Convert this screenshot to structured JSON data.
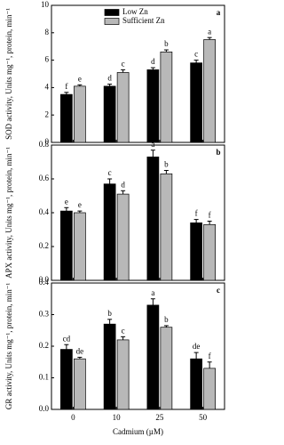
{
  "chart_data": [
    {
      "type": "bar",
      "panel_label": "a",
      "ylabel": "SOD activity, Units mg⁻¹, protein, min⁻¹",
      "ylim": [
        0,
        10
      ],
      "yticks": [
        0,
        2,
        4,
        6,
        8,
        10
      ],
      "legend": "upper left",
      "series": [
        {
          "name": "Low Zn",
          "color": "#000000",
          "values": [
            3.5,
            4.1,
            5.3,
            5.8
          ],
          "errors": [
            0.15,
            0.15,
            0.15,
            0.2
          ],
          "letters": [
            "f",
            "d",
            "d",
            "c"
          ]
        },
        {
          "name": "Sufficient Zn",
          "color": "#b8b8b8",
          "values": [
            4.1,
            5.1,
            6.6,
            7.5
          ],
          "errors": [
            0.1,
            0.2,
            0.15,
            0.15
          ],
          "letters": [
            "e",
            "c",
            "b",
            "a"
          ]
        }
      ]
    },
    {
      "type": "bar",
      "panel_label": "b",
      "ylabel": "APX activity, Units mg⁻¹, protein, min⁻¹",
      "ylim": [
        0,
        0.8
      ],
      "yticks": [
        {
          "value": 0,
          "label": "0.0"
        },
        0.2,
        0.4,
        0.6,
        0.8
      ],
      "series": [
        {
          "color": "#000000",
          "values": [
            0.41,
            0.57,
            0.73,
            0.34
          ],
          "errors": [
            0.02,
            0.03,
            0.04,
            0.02
          ],
          "letters": [
            "e",
            "c",
            "a",
            "f"
          ]
        },
        {
          "color": "#b8b8b8",
          "values": [
            0.4,
            0.51,
            0.63,
            0.33
          ],
          "errors": [
            0.01,
            0.02,
            0.02,
            0.02
          ],
          "letters": [
            "e",
            "d",
            "b",
            "f"
          ]
        }
      ]
    },
    {
      "type": "bar",
      "panel_label": "c",
      "ylabel": "GR activity, Units mg⁻¹, protein, min⁻¹",
      "xlabel": "Cadmium (µM)",
      "categories": [
        "0",
        "10",
        "25",
        "50"
      ],
      "ylim": [
        0,
        0.4
      ],
      "yticks": [
        {
          "value": 0,
          "label": "0.0"
        },
        0.1,
        0.2,
        0.3,
        0.4
      ],
      "series": [
        {
          "color": "#000000",
          "values": [
            0.19,
            0.27,
            0.33,
            0.16
          ],
          "errors": [
            0.015,
            0.015,
            0.02,
            0.02
          ],
          "letters": [
            "cd",
            "b",
            "a",
            "de"
          ]
        },
        {
          "color": "#b8b8b8",
          "values": [
            0.16,
            0.22,
            0.26,
            0.13
          ],
          "errors": [
            0.005,
            0.01,
            0.005,
            0.02
          ],
          "letters": [
            "de",
            "c",
            "b",
            "f"
          ]
        }
      ]
    }
  ]
}
